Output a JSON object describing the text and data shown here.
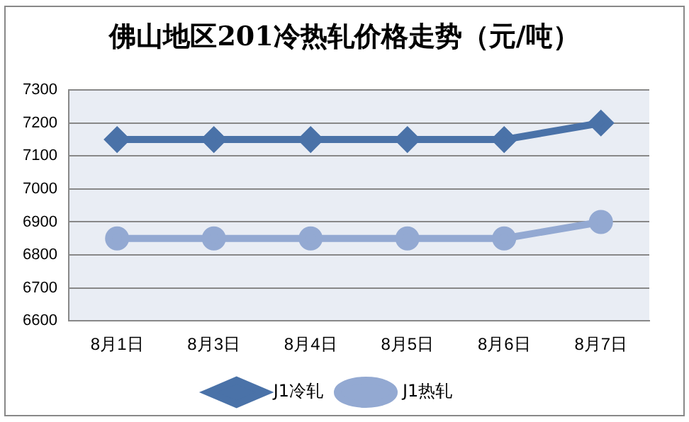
{
  "chart_data": {
    "type": "line",
    "title": "佛山地区201冷热轧价格走势（元/吨）",
    "categories": [
      "8月1日",
      "8月3日",
      "8月4日",
      "8月5日",
      "8月6日",
      "8月7日"
    ],
    "series": [
      {
        "name": "J1冷轧",
        "color": "#4a72a8",
        "marker": "diamond",
        "values": [
          7150,
          7150,
          7150,
          7150,
          7150,
          7200
        ]
      },
      {
        "name": "J1热轧",
        "color": "#93a9d2",
        "marker": "circle",
        "values": [
          6850,
          6850,
          6850,
          6850,
          6850,
          6900
        ]
      }
    ],
    "ylim": [
      6600,
      7300
    ],
    "yticks": [
      6600,
      6700,
      6800,
      6900,
      7000,
      7100,
      7200,
      7300
    ],
    "grid": "y",
    "legend": "bottom",
    "line_style": "solid"
  }
}
